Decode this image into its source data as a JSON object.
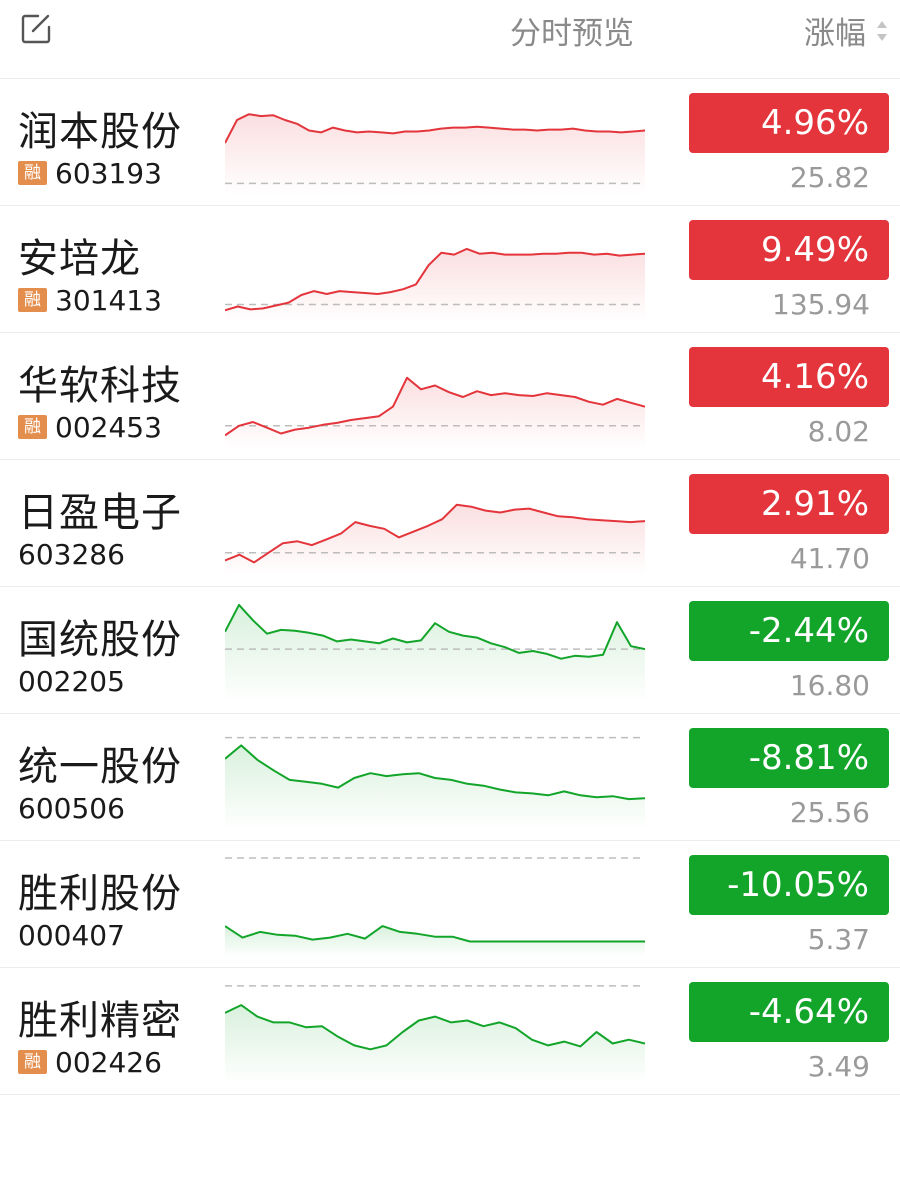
{
  "header": {
    "preview_label": "分时预览",
    "change_label": "涨幅"
  },
  "colors": {
    "up": "#e3353b",
    "down": "#12a52a",
    "margin_tag": "#e48e4e"
  },
  "stocks": [
    {
      "name": "润本股份",
      "code": "603193",
      "margin": true,
      "margin_tag": "融",
      "change": "4.96%",
      "price": "25.82",
      "direction": "up",
      "trend": [
        50,
        74,
        80,
        78,
        79,
        74,
        70,
        63,
        61,
        66,
        63,
        61,
        62,
        61,
        60,
        62,
        62,
        63,
        65,
        66,
        66,
        67,
        66,
        65,
        64,
        64,
        63,
        64,
        64,
        65,
        63,
        62,
        62,
        61,
        62,
        63
      ],
      "base": 8
    },
    {
      "name": "安培龙",
      "code": "301413",
      "margin": true,
      "margin_tag": "融",
      "change": "9.49%",
      "price": "135.94",
      "direction": "up",
      "trend": [
        8,
        12,
        9,
        10,
        13,
        16,
        24,
        28,
        25,
        28,
        27,
        26,
        25,
        27,
        30,
        35,
        55,
        68,
        66,
        72,
        67,
        68,
        66,
        66,
        66,
        67,
        67,
        68,
        68,
        66,
        67,
        65,
        66,
        67
      ],
      "base": 14
    },
    {
      "name": "华软科技",
      "code": "002453",
      "margin": true,
      "margin_tag": "融",
      "change": "4.16%",
      "price": "8.02",
      "direction": "up",
      "trend": [
        10,
        20,
        24,
        18,
        12,
        16,
        18,
        21,
        23,
        26,
        28,
        30,
        40,
        70,
        58,
        62,
        55,
        50,
        56,
        52,
        54,
        52,
        51,
        54,
        52,
        50,
        45,
        42,
        48,
        44,
        40
      ],
      "base": 20
    },
    {
      "name": "日盈电子",
      "code": "603286",
      "margin": false,
      "margin_tag": "",
      "change": "2.91%",
      "price": "41.70",
      "direction": "up",
      "trend": [
        12,
        18,
        10,
        20,
        30,
        32,
        28,
        34,
        40,
        52,
        48,
        45,
        36,
        42,
        48,
        55,
        70,
        68,
        64,
        62,
        65,
        66,
        62,
        58,
        57,
        55,
        54,
        53,
        52,
        53
      ],
      "base": 20
    },
    {
      "name": "国统股份",
      "code": "002205",
      "margin": false,
      "margin_tag": "",
      "change": "-2.44%",
      "price": "16.80",
      "direction": "down",
      "trend": [
        70,
        98,
        82,
        68,
        72,
        71,
        69,
        66,
        60,
        62,
        60,
        58,
        63,
        59,
        61,
        79,
        70,
        66,
        64,
        58,
        54,
        48,
        50,
        47,
        42,
        45,
        44,
        46,
        80,
        55,
        52
      ],
      "base": 52
    },
    {
      "name": "统一股份",
      "code": "600506",
      "margin": false,
      "margin_tag": "",
      "change": "-8.81%",
      "price": "25.56",
      "direction": "down",
      "trend": [
        70,
        84,
        69,
        58,
        48,
        46,
        44,
        40,
        50,
        55,
        52,
        54,
        55,
        50,
        48,
        44,
        42,
        38,
        35,
        34,
        32,
        36,
        32,
        30,
        31,
        28,
        29
      ],
      "base": 92
    },
    {
      "name": "胜利股份",
      "code": "000407",
      "margin": false,
      "margin_tag": "",
      "change": "-10.05%",
      "price": "5.37",
      "direction": "down",
      "trend": [
        28,
        16,
        22,
        19,
        18,
        14,
        16,
        20,
        15,
        28,
        22,
        20,
        17,
        17,
        12,
        12,
        12,
        12,
        12,
        12,
        12,
        12,
        12,
        12,
        12
      ],
      "base": 99
    },
    {
      "name": "胜利精密",
      "code": "002426",
      "margin": true,
      "margin_tag": "融",
      "change": "-4.64%",
      "price": "3.49",
      "direction": "down",
      "trend": [
        70,
        78,
        66,
        60,
        60,
        55,
        56,
        45,
        36,
        32,
        36,
        50,
        62,
        66,
        60,
        62,
        56,
        60,
        54,
        42,
        36,
        40,
        35,
        50,
        38,
        42,
        38
      ],
      "base": 98
    }
  ]
}
